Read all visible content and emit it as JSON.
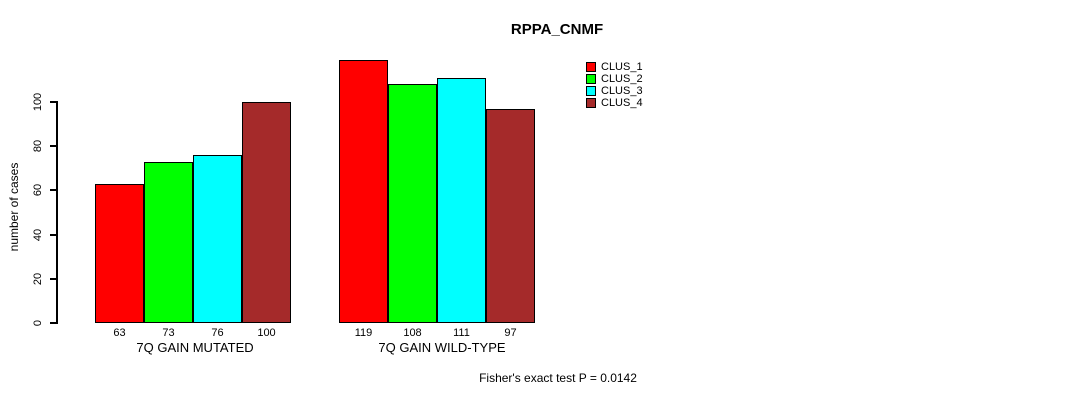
{
  "chart_data": {
    "type": "bar",
    "title": "RPPA_CNMF",
    "xlabel": "",
    "ylabel": "number of cases",
    "ylim": [
      0,
      100
    ],
    "yticks": [
      0,
      20,
      40,
      60,
      80,
      100
    ],
    "grid": false,
    "legend_position": "right",
    "bar_value_labels_shown": true,
    "categories": [
      "7Q GAIN MUTATED",
      "7Q GAIN WILD-TYPE"
    ],
    "series": [
      {
        "name": "CLUS_1",
        "color": "#ff0000",
        "values": [
          63,
          119
        ]
      },
      {
        "name": "CLUS_2",
        "color": "#00ff00",
        "values": [
          73,
          108
        ]
      },
      {
        "name": "CLUS_3",
        "color": "#00ffff",
        "values": [
          76,
          111
        ]
      },
      {
        "name": "CLUS_4",
        "color": "#a52a2a",
        "values": [
          100,
          97
        ]
      }
    ],
    "annotation": "Fisher's exact test P = 0.0142"
  }
}
